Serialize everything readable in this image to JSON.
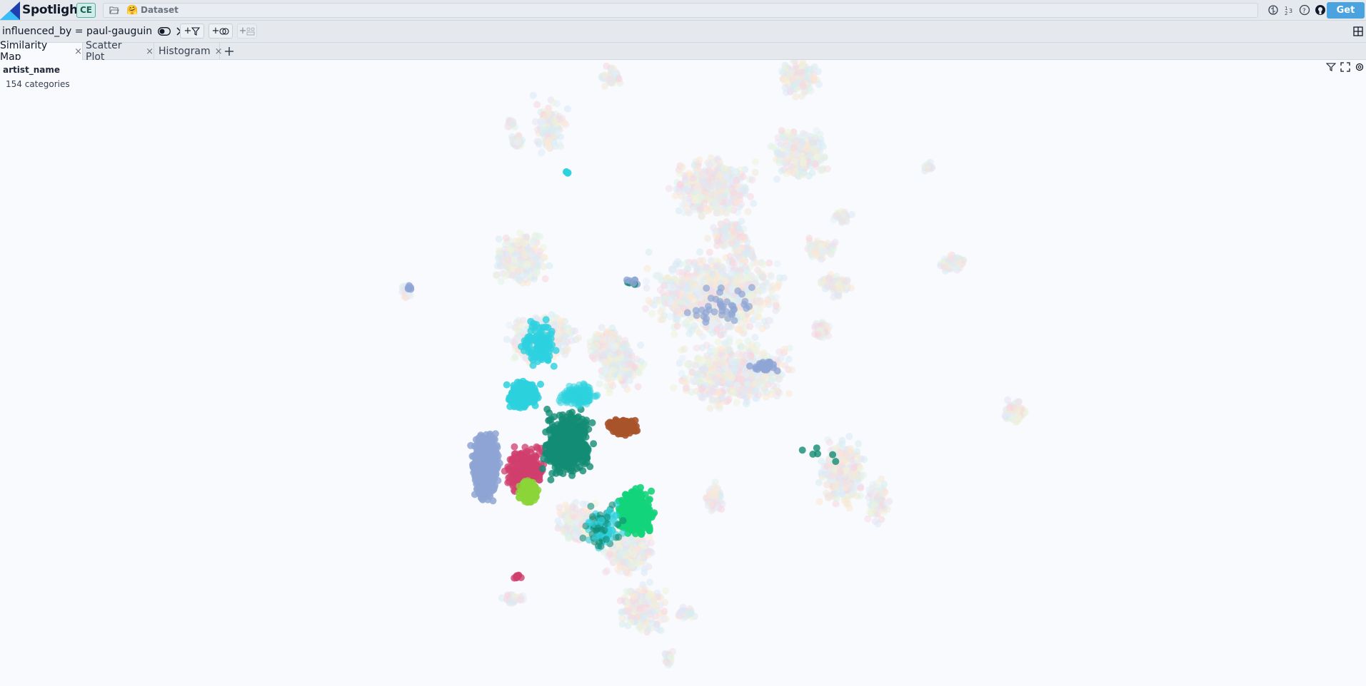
{
  "app": {
    "name": "Spotlight",
    "edition": "CE",
    "pro_button": "Get PRO"
  },
  "dataset": {
    "icon": "hugging-face-icon",
    "emoji": "🤗",
    "label": "Dataset"
  },
  "filter": {
    "text": "influenced_by = paul-gauguin"
  },
  "filter_buttons": {
    "add_filter": "+",
    "add_similarity": "+",
    "add_tag": "+"
  },
  "tabs": [
    {
      "label": "Similarity Map",
      "close": "×"
    },
    {
      "label": "Scatter Plot",
      "close": "×"
    },
    {
      "label": "Histogram",
      "close": "×"
    }
  ],
  "map": {
    "color_by": "artist_name",
    "category_count": "154 categories"
  },
  "colors": {
    "accent": "#4aa3df",
    "badge_bg": "#cfeee8",
    "highlight_clusters": [
      "#8ea5d4",
      "#d03f6e",
      "#2dd1de",
      "#138c74",
      "#a9532b",
      "#13d47a",
      "#8bd43a"
    ]
  }
}
